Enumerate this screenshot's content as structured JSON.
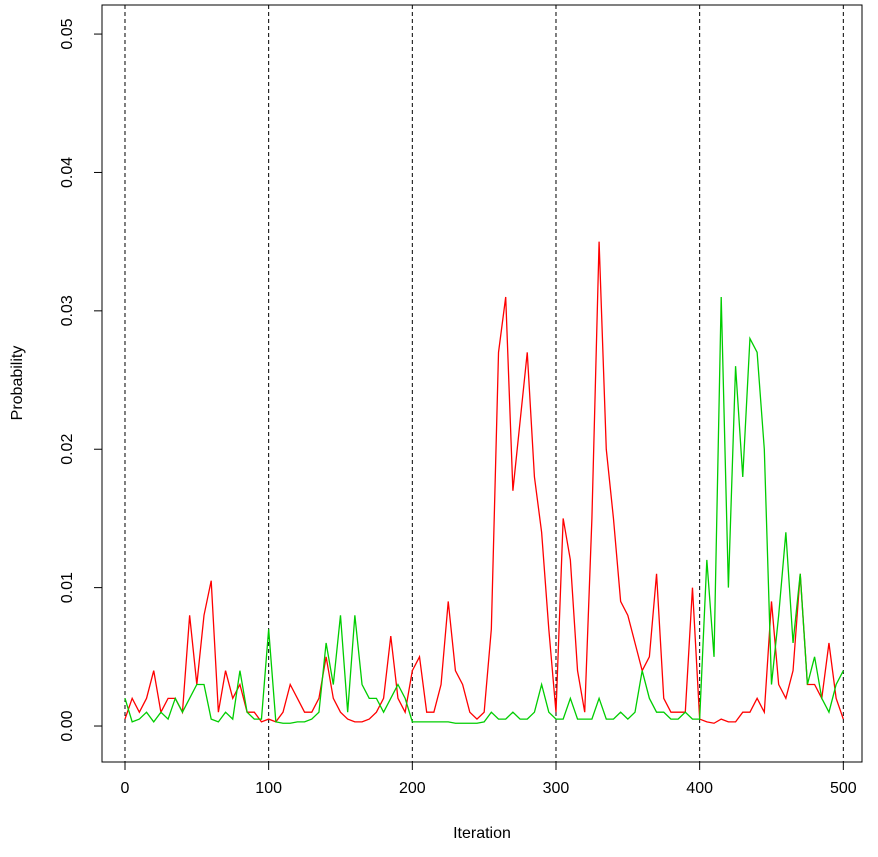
{
  "chart_data": {
    "type": "line",
    "x_label": "Iteration",
    "y_label": "Probability",
    "x": [
      0,
      5,
      10,
      15,
      20,
      25,
      30,
      35,
      40,
      45,
      50,
      55,
      60,
      65,
      70,
      75,
      80,
      85,
      90,
      95,
      100,
      105,
      110,
      115,
      120,
      125,
      130,
      135,
      140,
      145,
      150,
      155,
      160,
      165,
      170,
      175,
      180,
      185,
      190,
      195,
      200,
      205,
      210,
      215,
      220,
      225,
      230,
      235,
      240,
      245,
      250,
      255,
      260,
      265,
      270,
      275,
      280,
      285,
      290,
      295,
      300,
      305,
      310,
      315,
      320,
      325,
      330,
      335,
      340,
      345,
      350,
      355,
      360,
      365,
      370,
      375,
      380,
      385,
      390,
      395,
      400,
      405,
      410,
      415,
      420,
      425,
      430,
      435,
      440,
      445,
      450,
      455,
      460,
      465,
      470,
      475,
      480,
      485,
      490,
      495,
      500
    ],
    "series": [
      {
        "color": "#ff0000",
        "values": [
          0.0005,
          0.002,
          0.001,
          0.002,
          0.004,
          0.001,
          0.002,
          0.002,
          0.001,
          0.008,
          0.003,
          0.008,
          0.0105,
          0.001,
          0.004,
          0.002,
          0.003,
          0.001,
          0.001,
          0.0003,
          0.0005,
          0.0003,
          0.001,
          0.003,
          0.002,
          0.001,
          0.001,
          0.002,
          0.005,
          0.002,
          0.001,
          0.0005,
          0.0003,
          0.0003,
          0.0005,
          0.001,
          0.002,
          0.0065,
          0.002,
          0.001,
          0.004,
          0.005,
          0.001,
          0.001,
          0.003,
          0.009,
          0.004,
          0.003,
          0.001,
          0.0005,
          0.001,
          0.007,
          0.027,
          0.031,
          0.017,
          0.022,
          0.027,
          0.018,
          0.014,
          0.007,
          0.001,
          0.015,
          0.012,
          0.004,
          0.001,
          0.015,
          0.035,
          0.02,
          0.015,
          0.009,
          0.008,
          0.006,
          0.004,
          0.005,
          0.011,
          0.002,
          0.001,
          0.001,
          0.001,
          0.01,
          0.0005,
          0.0003,
          0.0002,
          0.0005,
          0.0003,
          0.0003,
          0.001,
          0.001,
          0.002,
          0.001,
          0.009,
          0.003,
          0.002,
          0.004,
          0.011,
          0.003,
          0.003,
          0.002,
          0.006,
          0.002,
          0.0005
        ]
      },
      {
        "color": "#00cd00",
        "values": [
          0.002,
          0.0003,
          0.0005,
          0.001,
          0.0003,
          0.001,
          0.0005,
          0.002,
          0.001,
          0.002,
          0.003,
          0.003,
          0.0005,
          0.0003,
          0.001,
          0.0005,
          0.004,
          0.001,
          0.0005,
          0.0005,
          0.007,
          0.0003,
          0.0002,
          0.0002,
          0.0003,
          0.0003,
          0.0005,
          0.001,
          0.006,
          0.003,
          0.008,
          0.001,
          0.008,
          0.003,
          0.002,
          0.002,
          0.001,
          0.002,
          0.003,
          0.002,
          0.0003,
          0.0003,
          0.0003,
          0.0003,
          0.0003,
          0.0003,
          0.0002,
          0.0002,
          0.0002,
          0.0002,
          0.0003,
          0.001,
          0.0005,
          0.0005,
          0.001,
          0.0005,
          0.0005,
          0.001,
          0.003,
          0.001,
          0.0005,
          0.0005,
          0.002,
          0.0005,
          0.0005,
          0.0005,
          0.002,
          0.0005,
          0.0005,
          0.001,
          0.0005,
          0.001,
          0.004,
          0.002,
          0.001,
          0.001,
          0.0005,
          0.0005,
          0.001,
          0.0005,
          0.0005,
          0.012,
          0.005,
          0.031,
          0.01,
          0.026,
          0.018,
          0.028,
          0.027,
          0.02,
          0.003,
          0.008,
          0.014,
          0.006,
          0.011,
          0.003,
          0.005,
          0.002,
          0.001,
          0.003,
          0.004
        ]
      }
    ],
    "xlim": [
      -16,
      513
    ],
    "ylim": [
      -0.0026,
      0.0521
    ],
    "xticks": [
      0,
      100,
      200,
      300,
      400,
      500
    ],
    "yticks": [
      {
        "value": 0,
        "label": "0.00"
      },
      0.01,
      0.02,
      0.03,
      0.04,
      0.05
    ],
    "vlines": [
      0,
      100,
      200,
      300,
      400,
      500
    ]
  }
}
